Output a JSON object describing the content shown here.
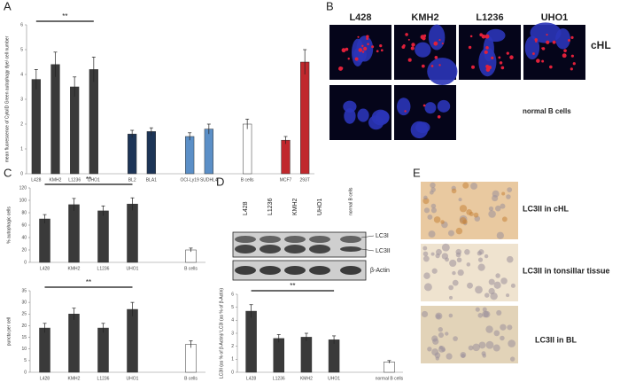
{
  "panels": {
    "a": "A",
    "b": "B",
    "c": "C",
    "d": "D",
    "e": "E"
  },
  "microscopy": {
    "columns": [
      "L428",
      "KMH2",
      "L1236",
      "UHO1"
    ],
    "row1": "cHL",
    "row2": "normal B cells"
  },
  "blot": {
    "lanes": [
      "L428",
      "L1236",
      "KMH2",
      "UHO1",
      "normal B cells"
    ],
    "bands": [
      "LC3I",
      "LC3II",
      "β-Actin"
    ]
  },
  "ihc": [
    "LC3II in cHL",
    "LC3II in tonsillar tissue",
    "LC3II in BL"
  ],
  "chart_data": [
    {
      "type": "bar",
      "y_label": "mean fluorescence of CytoID Green autophagy dye/ cell number",
      "categories": [
        "L428",
        "KMH2",
        "L1236",
        "UHO1",
        null,
        "BL2",
        "BLA1",
        null,
        "OCI-Ly19",
        "SUDHL4",
        null,
        "B cells",
        null,
        "MCF7",
        "293T"
      ],
      "values": [
        3.8,
        4.4,
        3.5,
        4.2,
        null,
        1.6,
        1.7,
        null,
        1.5,
        1.8,
        null,
        2.0,
        null,
        1.35,
        4.5
      ],
      "errors": [
        0.4,
        0.5,
        0.4,
        0.5,
        null,
        0.15,
        0.15,
        null,
        0.15,
        0.2,
        null,
        0.2,
        null,
        0.15,
        0.5
      ],
      "colors": [
        "#3a3a3a",
        "#3a3a3a",
        "#3a3a3a",
        "#3a3a3a",
        null,
        "#1d3557",
        "#1d3557",
        null,
        "#5b8fc7",
        "#5b8fc7",
        null,
        "#ffffff",
        null,
        "#c0282d",
        "#c0282d"
      ],
      "ylim": [
        0,
        6
      ],
      "yticks": [
        0,
        1,
        2,
        3,
        4,
        5,
        6
      ],
      "annotation": "**"
    },
    {
      "type": "bar",
      "y_label": "% autophagic cells",
      "categories": [
        "L428",
        "KMH2",
        "L1236",
        "UHO1",
        null,
        "B cells"
      ],
      "values": [
        70,
        93,
        83,
        94,
        null,
        20
      ],
      "errors": [
        7,
        10,
        8,
        10,
        null,
        3
      ],
      "colors": [
        "#3a3a3a",
        "#3a3a3a",
        "#3a3a3a",
        "#3a3a3a",
        null,
        "#ffffff"
      ],
      "ylim": [
        0,
        120
      ],
      "yticks": [
        0,
        20,
        40,
        60,
        80,
        100,
        120
      ],
      "annotation": "**"
    },
    {
      "type": "bar",
      "y_label": "puncta per cell",
      "categories": [
        "L428",
        "KMH2",
        "L1236",
        "UHO1",
        null,
        "B cells"
      ],
      "values": [
        19,
        25,
        19,
        27,
        null,
        12
      ],
      "errors": [
        2,
        2.5,
        2,
        3,
        null,
        1.5
      ],
      "colors": [
        "#3a3a3a",
        "#3a3a3a",
        "#3a3a3a",
        "#3a3a3a",
        null,
        "#ffffff"
      ],
      "ylim": [
        0,
        35
      ],
      "yticks": [
        0,
        5,
        10,
        15,
        20,
        25,
        30,
        35
      ],
      "annotation": "**"
    },
    {
      "type": "bar",
      "y_label": "LC3II (as % of β-Actin)/ LC3I (as % of β-Actin)",
      "categories": [
        "L428",
        "L1236",
        "KMH2",
        "UHO1",
        null,
        "normal B cells"
      ],
      "values": [
        4.7,
        2.6,
        2.7,
        2.5,
        null,
        0.8
      ],
      "errors": [
        0.5,
        0.3,
        0.3,
        0.3,
        null,
        0.1
      ],
      "colors": [
        "#3a3a3a",
        "#3a3a3a",
        "#3a3a3a",
        "#3a3a3a",
        null,
        "#ffffff"
      ],
      "ylim": [
        0,
        6
      ],
      "yticks": [
        0,
        1,
        2,
        3,
        4,
        5,
        6
      ],
      "annotation": "**"
    }
  ]
}
